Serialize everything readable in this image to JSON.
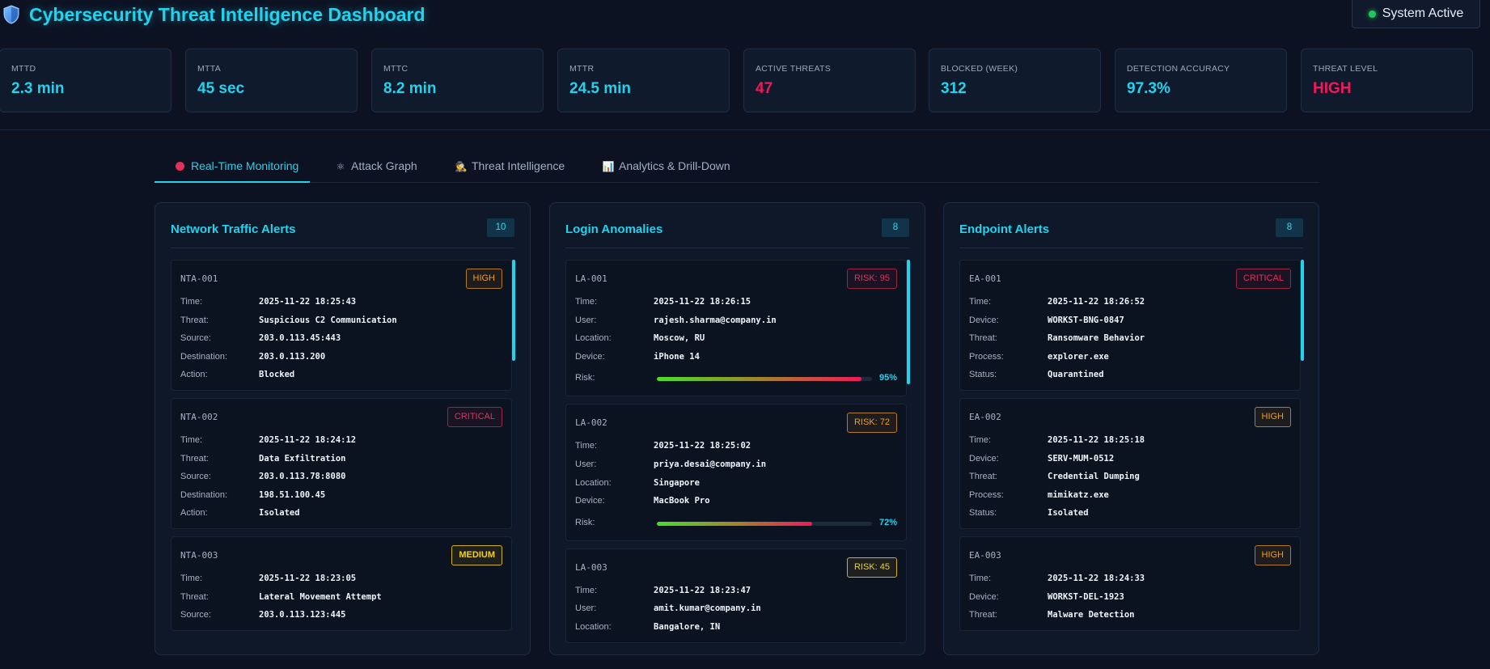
{
  "header": {
    "title": "Cybersecurity Threat Intelligence Dashboard",
    "logo_icon": "shield-icon",
    "status_label": "System Active",
    "status_color": "#22c55e"
  },
  "metrics": [
    {
      "label": "MTTD",
      "value": "2.3 min"
    },
    {
      "label": "MTTA",
      "value": "45 sec"
    },
    {
      "label": "MTTC",
      "value": "8.2 min"
    },
    {
      "label": "MTTR",
      "value": "24.5 min"
    },
    {
      "label": "ACTIVE THREATS",
      "value": "47",
      "status": "danger"
    },
    {
      "label": "BLOCKED (WEEK)",
      "value": "312"
    },
    {
      "label": "DETECTION ACCURACY",
      "value": "97.3%"
    },
    {
      "label": "THREAT LEVEL",
      "value": "HIGH",
      "status": "danger"
    }
  ],
  "tabs": [
    {
      "label": "Real-Time Monitoring",
      "icon": "red-circle-icon",
      "active": true
    },
    {
      "label": "Attack Graph",
      "icon": "atom-icon",
      "glyph": "⚛",
      "active": false
    },
    {
      "label": "Threat Intelligence",
      "icon": "detective-icon",
      "glyph": "🕵",
      "active": false
    },
    {
      "label": "Analytics & Drill-Down",
      "icon": "bar-chart-icon",
      "glyph": "📊",
      "active": false
    }
  ],
  "colors": {
    "accent": "#22d3ee",
    "danger": "#f0195a",
    "warning": "#f59e0b",
    "medium": "#f3d21b"
  },
  "panels": {
    "network": {
      "title": "Network Traffic Alerts",
      "count": "10",
      "alerts": [
        {
          "id": "NTA-001",
          "severity": "HIGH",
          "fields": [
            {
              "k": "Time:",
              "v": "2025-11-22 18:25:43"
            },
            {
              "k": "Threat:",
              "v": "Suspicious C2 Communication"
            },
            {
              "k": "Source:",
              "v": "203.0.113.45:443"
            },
            {
              "k": "Destination:",
              "v": "203.0.113.200"
            },
            {
              "k": "Action:",
              "v": "Blocked"
            }
          ]
        },
        {
          "id": "NTA-002",
          "severity": "CRITICAL",
          "fields": [
            {
              "k": "Time:",
              "v": "2025-11-22 18:24:12"
            },
            {
              "k": "Threat:",
              "v": "Data Exfiltration"
            },
            {
              "k": "Source:",
              "v": "203.0.113.78:8080"
            },
            {
              "k": "Destination:",
              "v": "198.51.100.45"
            },
            {
              "k": "Action:",
              "v": "Isolated"
            }
          ]
        },
        {
          "id": "NTA-003",
          "severity": "MEDIUM",
          "fields": [
            {
              "k": "Time:",
              "v": "2025-11-22 18:23:05"
            },
            {
              "k": "Threat:",
              "v": "Lateral Movement Attempt"
            },
            {
              "k": "Source:",
              "v": "203.0.113.123:445"
            }
          ]
        }
      ]
    },
    "login": {
      "title": "Login Anomalies",
      "count": "8",
      "anomalies": [
        {
          "id": "LA-001",
          "badge": "RISK: 95",
          "risk_class": "risk-high",
          "risk": 95,
          "risk_label": "95%",
          "fields": [
            {
              "k": "Time:",
              "v": "2025-11-22 18:26:15"
            },
            {
              "k": "User:",
              "v": "rajesh.sharma@company.in"
            },
            {
              "k": "Location:",
              "v": "Moscow, RU"
            },
            {
              "k": "Device:",
              "v": "iPhone 14"
            }
          ],
          "risk_key": "Risk:"
        },
        {
          "id": "LA-002",
          "badge": "RISK: 72",
          "risk_class": "risk-mid",
          "risk": 72,
          "risk_label": "72%",
          "fields": [
            {
              "k": "Time:",
              "v": "2025-11-22 18:25:02"
            },
            {
              "k": "User:",
              "v": "priya.desai@company.in"
            },
            {
              "k": "Location:",
              "v": "Singapore"
            },
            {
              "k": "Device:",
              "v": "MacBook Pro"
            }
          ],
          "risk_key": "Risk:"
        },
        {
          "id": "LA-003",
          "badge": "RISK: 45",
          "risk_class": "risk-low",
          "risk": null,
          "fields": [
            {
              "k": "Time:",
              "v": "2025-11-22 18:23:47"
            },
            {
              "k": "User:",
              "v": "amit.kumar@company.in"
            },
            {
              "k": "Location:",
              "v": "Bangalore, IN"
            }
          ]
        }
      ]
    },
    "endpoint": {
      "title": "Endpoint Alerts",
      "count": "8",
      "alerts": [
        {
          "id": "EA-001",
          "severity": "CRITICAL",
          "fields": [
            {
              "k": "Time:",
              "v": "2025-11-22 18:26:52"
            },
            {
              "k": "Device:",
              "v": "WORKST-BNG-0847"
            },
            {
              "k": "Threat:",
              "v": "Ransomware Behavior"
            },
            {
              "k": "Process:",
              "v": "explorer.exe"
            },
            {
              "k": "Status:",
              "v": "Quarantined"
            }
          ]
        },
        {
          "id": "EA-002",
          "severity": "HIGH",
          "fields": [
            {
              "k": "Time:",
              "v": "2025-11-22 18:25:18"
            },
            {
              "k": "Device:",
              "v": "SERV-MUM-0512"
            },
            {
              "k": "Threat:",
              "v": "Credential Dumping"
            },
            {
              "k": "Process:",
              "v": "mimikatz.exe"
            },
            {
              "k": "Status:",
              "v": "Isolated"
            }
          ]
        },
        {
          "id": "EA-003",
          "severity": "HIGH",
          "fields": [
            {
              "k": "Time:",
              "v": "2025-11-22 18:24:33"
            },
            {
              "k": "Device:",
              "v": "WORKST-DEL-1923"
            },
            {
              "k": "Threat:",
              "v": "Malware Detection"
            }
          ]
        }
      ]
    }
  }
}
